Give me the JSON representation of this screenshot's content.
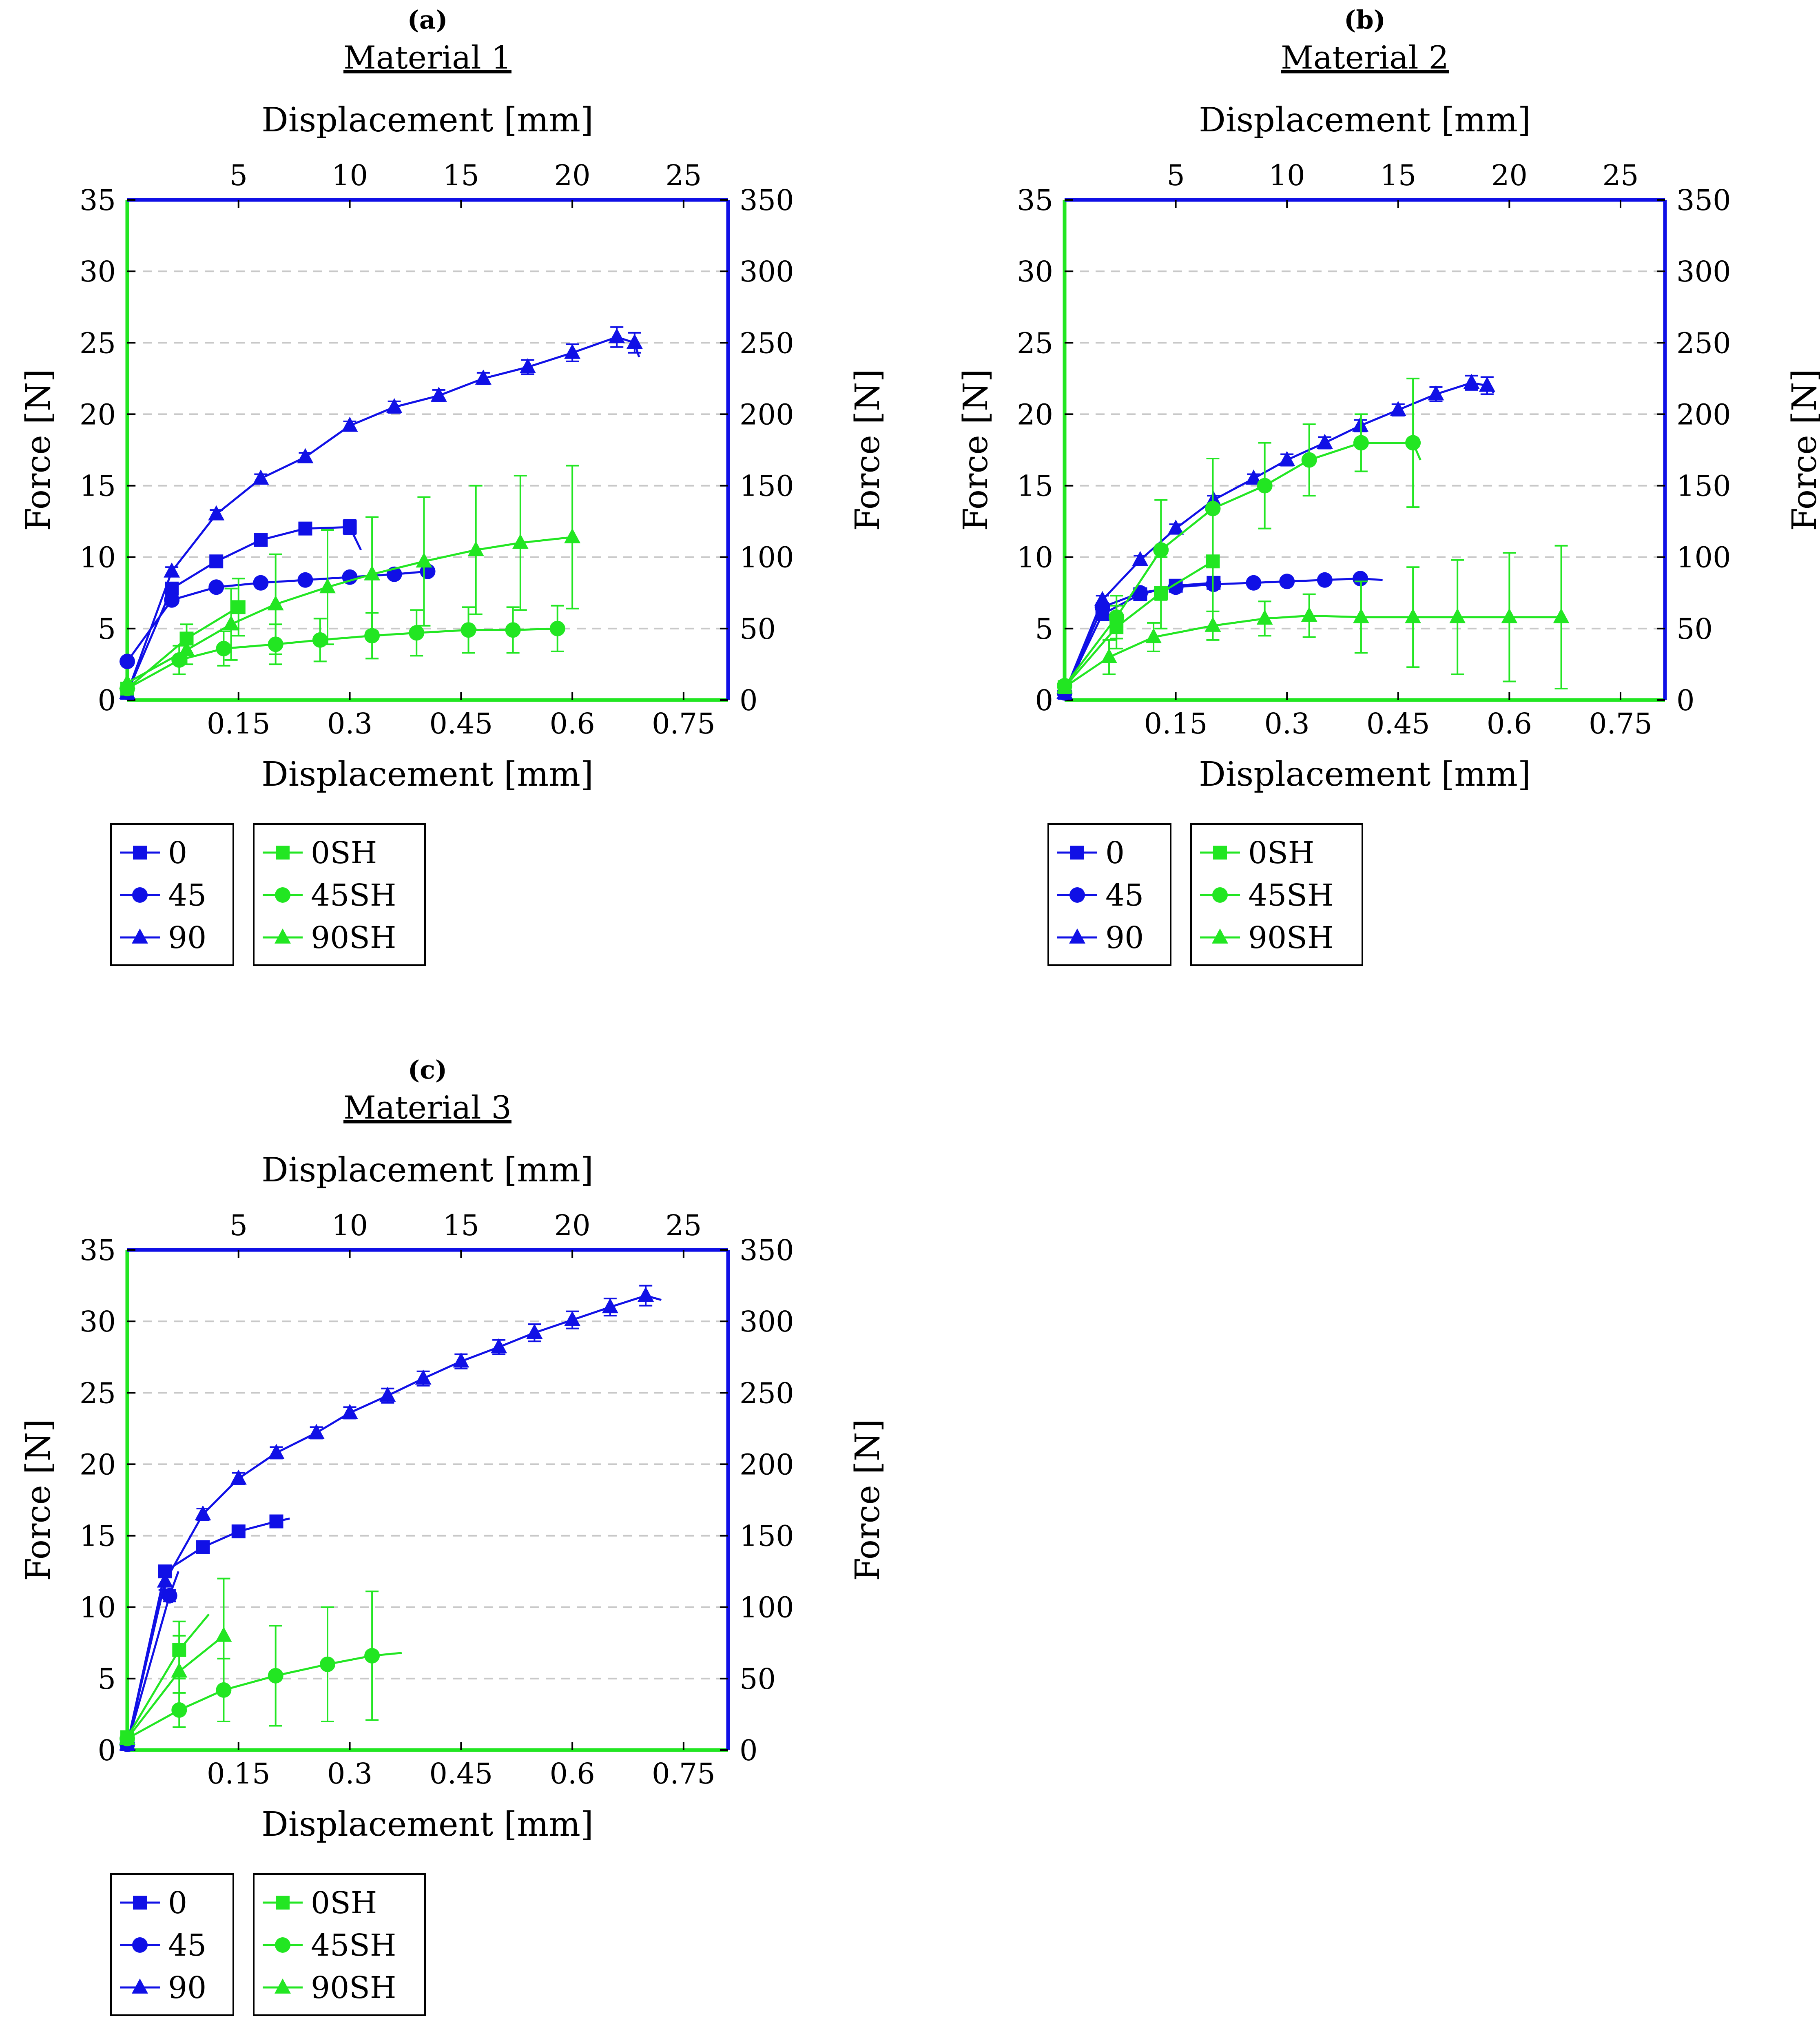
{
  "colors": {
    "blue": "#1010e6",
    "green": "#22e622"
  },
  "chart_data": [
    {
      "type": "line",
      "panel_label": "(a)",
      "title": "Material 1",
      "xlabel_bottom": "Displacement [mm]",
      "xlabel_top": "Displacement [mm]",
      "ylabel_left": "Force [N]",
      "ylabel_right": "Force [N]",
      "xlim_bottom": [
        0,
        0.81
      ],
      "xlim_top": [
        0,
        27
      ],
      "ylim_left": [
        0,
        35
      ],
      "ylim_right": [
        0,
        350
      ],
      "xticks_bottom": [
        {
          "v": 0.15,
          "label": "0.15"
        },
        {
          "v": 0.3,
          "label": "0.3"
        },
        {
          "v": 0.45,
          "label": "0.45"
        },
        {
          "v": 0.6,
          "label": "0.6"
        },
        {
          "v": 0.75,
          "label": "0.75"
        }
      ],
      "xticks_top": [
        {
          "v": 5,
          "label": "5"
        },
        {
          "v": 10,
          "label": "10"
        },
        {
          "v": 15,
          "label": "15"
        },
        {
          "v": 20,
          "label": "20"
        },
        {
          "v": 25,
          "label": "25"
        }
      ],
      "yticks_left": [
        {
          "v": 0,
          "label": "0"
        },
        {
          "v": 5,
          "label": "5"
        },
        {
          "v": 10,
          "label": "10"
        },
        {
          "v": 15,
          "label": "15"
        },
        {
          "v": 20,
          "label": "20"
        },
        {
          "v": 25,
          "label": "25"
        },
        {
          "v": 30,
          "label": "30"
        },
        {
          "v": 35,
          "label": "35"
        }
      ],
      "yticks_right": [
        {
          "v": 0,
          "label": "0"
        },
        {
          "v": 50,
          "label": "50"
        },
        {
          "v": 100,
          "label": "100"
        },
        {
          "v": 150,
          "label": "150"
        },
        {
          "v": 200,
          "label": "200"
        },
        {
          "v": 250,
          "label": "250"
        },
        {
          "v": 300,
          "label": "300"
        },
        {
          "v": 350,
          "label": "350"
        }
      ],
      "grid": true,
      "series": [
        {
          "name": "0",
          "axis": "top-right",
          "color": "blue",
          "marker": "square",
          "x": [
            0.0,
            2.0,
            4.0,
            6.0,
            8.0,
            10.0
          ],
          "y": [
            5,
            78,
            97,
            112,
            120,
            121
          ],
          "err": [
            0,
            3,
            3,
            4,
            4,
            5
          ],
          "tail": [
            10.5,
            105
          ]
        },
        {
          "name": "45",
          "axis": "top-right",
          "color": "blue",
          "marker": "circle",
          "x": [
            0.0,
            2.0,
            4.0,
            6.0,
            8.0,
            10.0,
            12.0,
            13.5
          ],
          "y": [
            27,
            70,
            79,
            82,
            84,
            86,
            88,
            90
          ],
          "err": [
            0,
            3,
            2,
            2,
            2,
            2,
            2,
            2
          ]
        },
        {
          "name": "90",
          "axis": "top-right",
          "color": "blue",
          "marker": "triangle",
          "x": [
            0.0,
            2.0,
            4.0,
            6.0,
            8.0,
            10.0,
            12.0,
            14.0,
            16.0,
            18.0,
            20.0,
            22.0,
            22.8
          ],
          "y": [
            5,
            90,
            130,
            155,
            170,
            192,
            205,
            213,
            225,
            233,
            243,
            254,
            250
          ],
          "err": [
            0,
            3,
            3,
            3,
            3,
            3,
            4,
            4,
            4,
            5,
            6,
            7,
            7
          ],
          "tail": [
            23.0,
            240
          ]
        },
        {
          "name": "0SH",
          "axis": "bottom-left",
          "color": "green",
          "marker": "square",
          "x": [
            0.0,
            0.08,
            0.15
          ],
          "y": [
            0.8,
            4.3,
            6.5
          ],
          "err": [
            0,
            1.0,
            2.0
          ]
        },
        {
          "name": "45SH",
          "axis": "bottom-left",
          "color": "green",
          "marker": "circle",
          "x": [
            0.0,
            0.07,
            0.13,
            0.2,
            0.26,
            0.33,
            0.39,
            0.46,
            0.52,
            0.58
          ],
          "y": [
            0.8,
            2.8,
            3.6,
            3.9,
            4.2,
            4.5,
            4.7,
            4.9,
            4.9,
            5.0
          ],
          "err": [
            0,
            1.0,
            1.2,
            1.4,
            1.5,
            1.6,
            1.6,
            1.6,
            1.6,
            1.6
          ]
        },
        {
          "name": "90SH",
          "axis": "bottom-left",
          "color": "green",
          "marker": "triangle",
          "x": [
            0.0,
            0.08,
            0.14,
            0.2,
            0.27,
            0.33,
            0.4,
            0.47,
            0.53,
            0.6
          ],
          "y": [
            1.2,
            3.5,
            5.3,
            6.7,
            7.9,
            8.8,
            9.7,
            10.5,
            11.0,
            11.4
          ],
          "err": [
            0,
            1.0,
            2.5,
            3.5,
            4.0,
            4.0,
            4.5,
            4.5,
            4.7,
            5.0
          ]
        }
      ]
    },
    {
      "type": "line",
      "panel_label": "(b)",
      "title": "Material 2",
      "xlabel_bottom": "Displacement [mm]",
      "xlabel_top": "Displacement [mm]",
      "ylabel_left": "Force [N]",
      "ylabel_right": "Force [N]",
      "xlim_bottom": [
        0,
        0.81
      ],
      "xlim_top": [
        0,
        27
      ],
      "ylim_left": [
        0,
        35
      ],
      "ylim_right": [
        0,
        350
      ],
      "xticks_bottom": [
        {
          "v": 0.15,
          "label": "0.15"
        },
        {
          "v": 0.3,
          "label": "0.3"
        },
        {
          "v": 0.45,
          "label": "0.45"
        },
        {
          "v": 0.6,
          "label": "0.6"
        },
        {
          "v": 0.75,
          "label": "0.75"
        }
      ],
      "xticks_top": [
        {
          "v": 5,
          "label": "5"
        },
        {
          "v": 10,
          "label": "10"
        },
        {
          "v": 15,
          "label": "15"
        },
        {
          "v": 20,
          "label": "20"
        },
        {
          "v": 25,
          "label": "25"
        }
      ],
      "yticks_left": [
        {
          "v": 0,
          "label": "0"
        },
        {
          "v": 5,
          "label": "5"
        },
        {
          "v": 10,
          "label": "10"
        },
        {
          "v": 15,
          "label": "15"
        },
        {
          "v": 20,
          "label": "20"
        },
        {
          "v": 25,
          "label": "25"
        },
        {
          "v": 30,
          "label": "30"
        },
        {
          "v": 35,
          "label": "35"
        }
      ],
      "yticks_right": [
        {
          "v": 0,
          "label": "0"
        },
        {
          "v": 50,
          "label": "50"
        },
        {
          "v": 100,
          "label": "100"
        },
        {
          "v": 150,
          "label": "150"
        },
        {
          "v": 200,
          "label": "200"
        },
        {
          "v": 250,
          "label": "250"
        },
        {
          "v": 300,
          "label": "300"
        },
        {
          "v": 350,
          "label": "350"
        }
      ],
      "grid": true,
      "series": [
        {
          "name": "0",
          "axis": "top-right",
          "color": "blue",
          "marker": "square",
          "x": [
            0.0,
            1.7,
            3.4,
            5.0,
            6.7
          ],
          "y": [
            5,
            60,
            74,
            80,
            82
          ],
          "err": [
            0,
            3,
            2,
            2,
            2
          ]
        },
        {
          "name": "45",
          "axis": "top-right",
          "color": "blue",
          "marker": "circle",
          "x": [
            0.0,
            1.7,
            3.4,
            5.0,
            6.7,
            8.5,
            10.0,
            11.7,
            13.3
          ],
          "y": [
            5,
            65,
            75,
            79,
            81,
            82,
            83,
            84,
            85
          ],
          "err": [
            0,
            3,
            2,
            2,
            2,
            2,
            2,
            2,
            2
          ],
          "tail": [
            14.3,
            84
          ]
        },
        {
          "name": "90",
          "axis": "top-right",
          "color": "blue",
          "marker": "triangle",
          "x": [
            0.0,
            1.7,
            3.4,
            5.0,
            6.7,
            8.5,
            10.0,
            11.7,
            13.3,
            15.0,
            16.7,
            18.3,
            19.0
          ],
          "y": [
            5,
            70,
            98,
            120,
            140,
            155,
            168,
            180,
            192,
            203,
            214,
            222,
            220
          ],
          "err": [
            0,
            3,
            3,
            3,
            3,
            3,
            4,
            4,
            4,
            4,
            5,
            5,
            6
          ],
          "tail": [
            19.3,
            215
          ]
        },
        {
          "name": "0SH",
          "axis": "bottom-left",
          "color": "green",
          "marker": "square",
          "x": [
            0.0,
            0.07,
            0.13,
            0.2
          ],
          "y": [
            0.9,
            5.1,
            7.5,
            9.7
          ],
          "err": [
            0,
            1.5,
            2.5,
            3.5
          ]
        },
        {
          "name": "45SH",
          "axis": "bottom-left",
          "color": "green",
          "marker": "circle",
          "x": [
            0.0,
            0.07,
            0.13,
            0.2,
            0.27,
            0.33,
            0.4,
            0.47
          ],
          "y": [
            1.0,
            5.8,
            10.5,
            13.4,
            15.0,
            16.8,
            18.0,
            18.0
          ],
          "err": [
            0,
            1.5,
            3.5,
            3.5,
            3.0,
            2.5,
            2.0,
            4.5
          ],
          "tail": [
            0.48,
            16.8
          ]
        },
        {
          "name": "90SH",
          "axis": "bottom-left",
          "color": "green",
          "marker": "triangle",
          "x": [
            0.0,
            0.06,
            0.12,
            0.2,
            0.27,
            0.33,
            0.4,
            0.47,
            0.53,
            0.6,
            0.67
          ],
          "y": [
            0.9,
            3.0,
            4.4,
            5.2,
            5.7,
            5.9,
            5.8,
            5.8,
            5.8,
            5.8,
            5.8
          ],
          "err": [
            0,
            1.2,
            1.0,
            1.0,
            1.2,
            1.5,
            2.5,
            3.5,
            4.0,
            4.5,
            5.0
          ]
        }
      ]
    },
    {
      "type": "line",
      "panel_label": "(c)",
      "title": "Material 3",
      "xlabel_bottom": "Displacement [mm]",
      "xlabel_top": "Displacement [mm]",
      "ylabel_left": "Force [N]",
      "ylabel_right": "Force [N]",
      "xlim_bottom": [
        0,
        0.81
      ],
      "xlim_top": [
        0,
        27
      ],
      "ylim_left": [
        0,
        35
      ],
      "ylim_right": [
        0,
        350
      ],
      "xticks_bottom": [
        {
          "v": 0.15,
          "label": "0.15"
        },
        {
          "v": 0.3,
          "label": "0.3"
        },
        {
          "v": 0.45,
          "label": "0.45"
        },
        {
          "v": 0.6,
          "label": "0.6"
        },
        {
          "v": 0.75,
          "label": "0.75"
        }
      ],
      "xticks_top": [
        {
          "v": 5,
          "label": "5"
        },
        {
          "v": 10,
          "label": "10"
        },
        {
          "v": 15,
          "label": "15"
        },
        {
          "v": 20,
          "label": "20"
        },
        {
          "v": 25,
          "label": "25"
        }
      ],
      "yticks_left": [
        {
          "v": 0,
          "label": "0"
        },
        {
          "v": 5,
          "label": "5"
        },
        {
          "v": 10,
          "label": "10"
        },
        {
          "v": 15,
          "label": "15"
        },
        {
          "v": 20,
          "label": "20"
        },
        {
          "v": 25,
          "label": "25"
        },
        {
          "v": 30,
          "label": "30"
        },
        {
          "v": 35,
          "label": "35"
        }
      ],
      "yticks_right": [
        {
          "v": 0,
          "label": "0"
        },
        {
          "v": 50,
          "label": "50"
        },
        {
          "v": 100,
          "label": "100"
        },
        {
          "v": 150,
          "label": "150"
        },
        {
          "v": 200,
          "label": "200"
        },
        {
          "v": 250,
          "label": "250"
        },
        {
          "v": 300,
          "label": "300"
        },
        {
          "v": 350,
          "label": "350"
        }
      ],
      "grid": true,
      "series": [
        {
          "name": "0",
          "axis": "top-right",
          "color": "blue",
          "marker": "square",
          "x": [
            0.0,
            1.7,
            3.4,
            5.0,
            6.7
          ],
          "y": [
            4,
            125,
            142,
            153,
            160
          ],
          "err": [
            0,
            4,
            3,
            3,
            3
          ],
          "tail": [
            7.3,
            162
          ]
        },
        {
          "name": "45",
          "axis": "top-right",
          "color": "blue",
          "marker": "circle",
          "x": [
            0.0,
            1.9
          ],
          "y": [
            4,
            108
          ],
          "err": [
            0,
            4
          ],
          "tail": [
            2.3,
            125
          ]
        },
        {
          "name": "90",
          "axis": "top-right",
          "color": "blue",
          "marker": "triangle",
          "x": [
            0.0,
            1.7,
            3.4,
            5.0,
            6.7,
            8.5,
            10.0,
            11.7,
            13.3,
            15.0,
            16.7,
            18.3,
            20.0,
            21.7,
            23.3
          ],
          "y": [
            4,
            118,
            165,
            190,
            208,
            222,
            236,
            248,
            260,
            272,
            282,
            292,
            301,
            310,
            318
          ],
          "err": [
            0,
            6,
            4,
            4,
            4,
            4,
            4,
            5,
            5,
            5,
            5,
            6,
            6,
            6,
            7
          ],
          "tail": [
            24.0,
            315
          ]
        },
        {
          "name": "0SH",
          "axis": "bottom-left",
          "color": "green",
          "marker": "square",
          "x": [
            0.0,
            0.07
          ],
          "y": [
            0.9,
            7.0
          ],
          "err": [
            0,
            2.0
          ],
          "tail": [
            0.11,
            9.5
          ]
        },
        {
          "name": "45SH",
          "axis": "bottom-left",
          "color": "green",
          "marker": "circle",
          "x": [
            0.0,
            0.07,
            0.13,
            0.2,
            0.27,
            0.33
          ],
          "y": [
            0.8,
            2.8,
            4.2,
            5.2,
            6.0,
            6.6
          ],
          "err": [
            0,
            1.2,
            2.2,
            3.5,
            4.0,
            4.5
          ],
          "tail": [
            0.37,
            6.8
          ]
        },
        {
          "name": "90SH",
          "axis": "bottom-left",
          "color": "green",
          "marker": "triangle",
          "x": [
            0.0,
            0.07,
            0.13
          ],
          "y": [
            0.8,
            5.5,
            8.0
          ],
          "err": [
            0,
            2.5,
            4.0
          ]
        }
      ]
    }
  ]
}
